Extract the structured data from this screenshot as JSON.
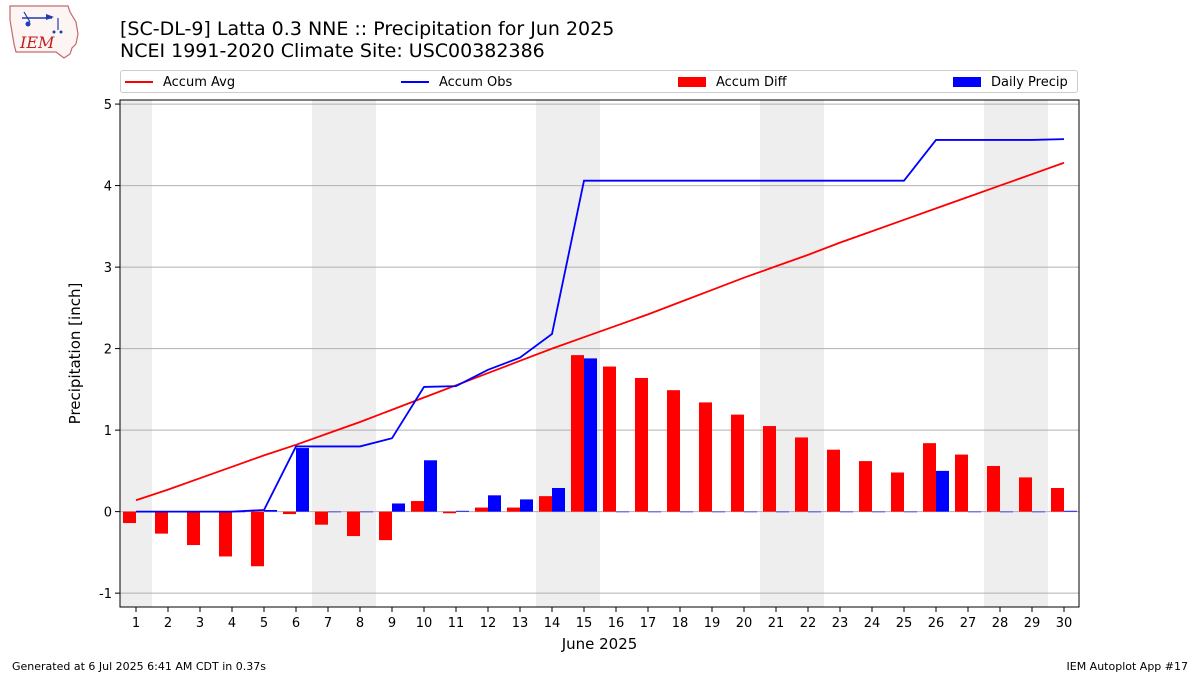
{
  "header": {
    "title_line1": "[SC-DL-9] Latta 0.3 NNE :: Precipitation for Jun 2025",
    "title_line2": "NCEI 1991-2020 Climate Site: USC00382386"
  },
  "logo": {
    "text": "IEM",
    "icon": "iem-iowa-logo-icon"
  },
  "legend": {
    "placement": "top",
    "items": [
      {
        "label": "Accum Avg",
        "kind": "line",
        "color": "#ff0000"
      },
      {
        "label": "Accum Obs",
        "kind": "line",
        "color": "#0000ff"
      },
      {
        "label": "Accum Diff",
        "kind": "box",
        "color": "#ff0000"
      },
      {
        "label": "Daily Precip",
        "kind": "box",
        "color": "#0000ff"
      }
    ]
  },
  "chart_data": {
    "type": "bar",
    "title": "[SC-DL-9] Latta 0.3 NNE :: Precipitation for Jun 2025",
    "subtitle": "NCEI 1991-2020 Climate Site: USC00382386",
    "xlabel": "June 2025",
    "ylabel": "Precipitation [inch]",
    "ylim": [
      -1.17,
      5.05
    ],
    "yticks": [
      -1,
      0,
      1,
      2,
      3,
      4,
      5
    ],
    "grid": "y",
    "weekend_shading": [
      [
        1,
        1
      ],
      [
        7,
        8
      ],
      [
        14,
        15
      ],
      [
        21,
        22
      ],
      [
        28,
        29
      ]
    ],
    "x": [
      1,
      2,
      3,
      4,
      5,
      6,
      7,
      8,
      9,
      10,
      11,
      12,
      13,
      14,
      15,
      16,
      17,
      18,
      19,
      20,
      21,
      22,
      23,
      24,
      25,
      26,
      27,
      28,
      29,
      30
    ],
    "series": [
      {
        "name": "Accum Avg",
        "kind": "line",
        "color": "#ff0000",
        "values": [
          0.14,
          0.27,
          0.41,
          0.55,
          0.69,
          0.82,
          0.96,
          1.1,
          1.25,
          1.4,
          1.55,
          1.7,
          1.85,
          2.0,
          2.14,
          2.28,
          2.42,
          2.57,
          2.72,
          2.87,
          3.01,
          3.15,
          3.3,
          3.44,
          3.58,
          3.72,
          3.86,
          4.0,
          4.14,
          4.28
        ]
      },
      {
        "name": "Accum Obs",
        "kind": "line",
        "color": "#0000ff",
        "values": [
          0.0,
          0.0,
          0.0,
          0.0,
          0.02,
          0.8,
          0.8,
          0.8,
          0.9,
          1.53,
          1.54,
          1.74,
          1.89,
          2.18,
          4.06,
          4.06,
          4.06,
          4.06,
          4.06,
          4.06,
          4.06,
          4.06,
          4.06,
          4.06,
          4.06,
          4.56,
          4.56,
          4.56,
          4.56,
          4.57
        ]
      },
      {
        "name": "Accum Diff",
        "kind": "bar",
        "color": "#ff0000",
        "values": [
          -0.14,
          -0.27,
          -0.41,
          -0.55,
          -0.67,
          -0.03,
          -0.16,
          -0.3,
          -0.35,
          0.13,
          -0.02,
          0.05,
          0.05,
          0.19,
          1.92,
          1.78,
          1.64,
          1.49,
          1.34,
          1.19,
          1.05,
          0.91,
          0.76,
          0.62,
          0.48,
          0.84,
          0.7,
          0.56,
          0.42,
          0.29
        ]
      },
      {
        "name": "Daily Precip",
        "kind": "bar",
        "color": "#0000ff",
        "values": [
          0.0,
          0.0,
          0.0,
          0.0,
          0.02,
          0.78,
          0.0,
          0.0,
          0.1,
          0.63,
          0.01,
          0.2,
          0.15,
          0.29,
          1.88,
          0.0,
          0.0,
          0.0,
          0.0,
          0.0,
          0.0,
          0.0,
          0.0,
          0.0,
          0.0,
          0.5,
          0.0,
          0.0,
          0.0,
          0.01
        ]
      }
    ]
  },
  "footer": {
    "left": "Generated at 6 Jul 2025 6:41 AM CDT in 0.37s",
    "right": "IEM Autoplot App #17"
  }
}
